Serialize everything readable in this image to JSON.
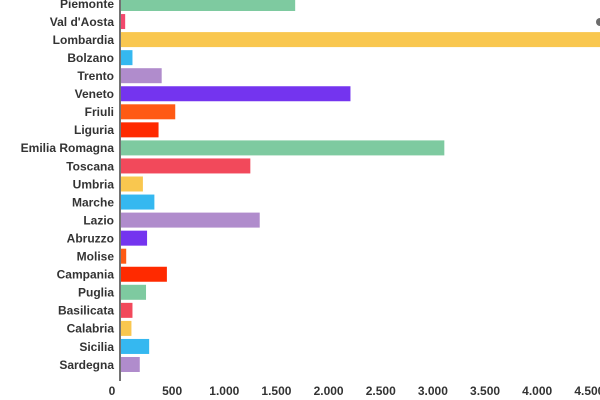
{
  "chart_data": {
    "type": "bar",
    "orientation": "horizontal",
    "title": "",
    "xlabel": "",
    "ylabel": "",
    "xlim": [
      0,
      4600
    ],
    "grid": false,
    "legend": "none",
    "categories": [
      "Piemonte",
      "Val d'Aosta",
      "Lombardia",
      "Bolzano",
      "Trento",
      "Veneto",
      "Friuli",
      "Liguria",
      "Emilia Romagna",
      "Toscana",
      "Umbria",
      "Marche",
      "Lazio",
      "Abruzzo",
      "Molise",
      "Campania",
      "Puglia",
      "Basilicata",
      "Calabria",
      "Sicilia",
      "Sardegna"
    ],
    "values": [
      1670,
      40,
      4600,
      110,
      390,
      2200,
      520,
      360,
      3100,
      1240,
      210,
      320,
      1330,
      250,
      50,
      440,
      240,
      110,
      100,
      270,
      180
    ],
    "colors": [
      "#7ecaa0",
      "#f2496d",
      "#f9c74f",
      "#35b8f0",
      "#b08ccc",
      "#7434ef",
      "#ff5a14",
      "#ff2a00",
      "#7ecaa0",
      "#f2495b",
      "#f9c74f",
      "#35b8f0",
      "#b08ccc",
      "#7434ef",
      "#ff5a14",
      "#ff2a00",
      "#7ecaa0",
      "#f2495b",
      "#f9c74f",
      "#35b8f0",
      "#b08ccc"
    ],
    "ticks": [
      0,
      500,
      1000,
      1500,
      2000,
      2500,
      3000,
      3500,
      4000,
      4500
    ],
    "tick_labels": [
      "0",
      "500",
      "1.000",
      "1.500",
      "2.000",
      "2.500",
      "3.000",
      "3.500",
      "4.000",
      "4.500"
    ]
  }
}
